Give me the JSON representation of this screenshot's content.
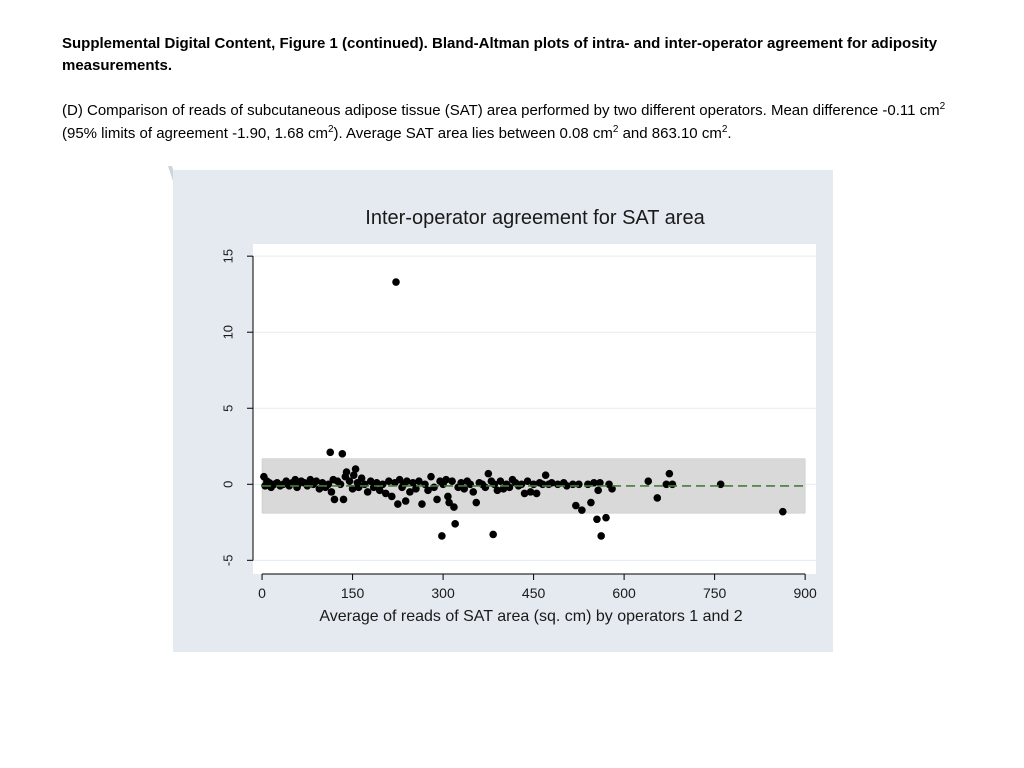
{
  "header": {
    "title": "Supplemental Digital Content, Figure 1 (continued). Bland-Altman plots of intra- and inter-operator agreement for adiposity measurements.",
    "description": {
      "part1": "(D) Comparison of reads of subcutaneous adipose tissue (SAT) area performed by two different operators. Mean difference -0.11 cm",
      "sup1": "2",
      "part2": " (95% limits of agreement -1.90, 1.68 cm",
      "sup2": "2",
      "part3": "). Average SAT area lies between 0.08 cm",
      "sup3": "2",
      "part4": " and 863.10 cm",
      "sup4": "2",
      "part5": "."
    }
  },
  "colors": {
    "panel_bg": "#e5eaf0",
    "plot_bg": "#ffffff",
    "gridline": "#e6eaef",
    "band_fill": "#d9d9d9",
    "mean_line": "#4a7a3a",
    "points": "#000000"
  },
  "chart_data": {
    "type": "scatter",
    "title": "Inter-operator agreement for SAT area",
    "xlabel": "Average of reads of SAT area (sq. cm) by operators 1 and 2",
    "ylabel": "",
    "xlim": [
      -15,
      918
    ],
    "ylim": [
      -5.9,
      15.8
    ],
    "xticks": [
      0,
      150,
      300,
      450,
      600,
      750,
      900
    ],
    "yticks": [
      -5,
      0,
      5,
      10,
      15
    ],
    "grid": true,
    "mean_difference": -0.11,
    "limits_of_agreement": [
      -1.9,
      1.68
    ],
    "points": [
      [
        3,
        0.5
      ],
      [
        5,
        -0.1
      ],
      [
        8,
        0.2
      ],
      [
        12,
        0.1
      ],
      [
        15,
        -0.2
      ],
      [
        20,
        0.0
      ],
      [
        25,
        0.1
      ],
      [
        30,
        -0.1
      ],
      [
        35,
        0.0
      ],
      [
        40,
        0.2
      ],
      [
        45,
        -0.1
      ],
      [
        50,
        0.1
      ],
      [
        55,
        0.3
      ],
      [
        58,
        -0.2
      ],
      [
        60,
        0.0
      ],
      [
        65,
        0.2
      ],
      [
        70,
        0.1
      ],
      [
        75,
        -0.1
      ],
      [
        80,
        0.3
      ],
      [
        85,
        0.0
      ],
      [
        90,
        0.2
      ],
      [
        95,
        -0.3
      ],
      [
        100,
        0.1
      ],
      [
        105,
        -0.2
      ],
      [
        110,
        0.0
      ],
      [
        113,
        2.1
      ],
      [
        115,
        -0.5
      ],
      [
        118,
        0.3
      ],
      [
        120,
        -1.0
      ],
      [
        125,
        0.2
      ],
      [
        130,
        0.0
      ],
      [
        133,
        2.0
      ],
      [
        135,
        -1.0
      ],
      [
        138,
        0.5
      ],
      [
        140,
        0.8
      ],
      [
        145,
        0.2
      ],
      [
        150,
        -0.3
      ],
      [
        152,
        0.6
      ],
      [
        155,
        1.0
      ],
      [
        158,
        0.1
      ],
      [
        160,
        -0.2
      ],
      [
        165,
        0.4
      ],
      [
        170,
        0.0
      ],
      [
        175,
        -0.5
      ],
      [
        180,
        0.2
      ],
      [
        185,
        -0.2
      ],
      [
        190,
        0.1
      ],
      [
        195,
        -0.4
      ],
      [
        200,
        0.0
      ],
      [
        205,
        -0.6
      ],
      [
        210,
        0.2
      ],
      [
        215,
        -0.8
      ],
      [
        220,
        0.1
      ],
      [
        222,
        13.3
      ],
      [
        225,
        -1.3
      ],
      [
        228,
        0.3
      ],
      [
        232,
        -0.2
      ],
      [
        235,
        0.0
      ],
      [
        238,
        -1.1
      ],
      [
        240,
        0.2
      ],
      [
        245,
        -0.5
      ],
      [
        250,
        0.1
      ],
      [
        255,
        -0.3
      ],
      [
        260,
        0.2
      ],
      [
        265,
        -1.3
      ],
      [
        270,
        0.0
      ],
      [
        275,
        -0.4
      ],
      [
        280,
        0.5
      ],
      [
        285,
        -0.2
      ],
      [
        290,
        -1.0
      ],
      [
        295,
        0.2
      ],
      [
        298,
        -3.4
      ],
      [
        300,
        0.0
      ],
      [
        305,
        0.3
      ],
      [
        308,
        -0.8
      ],
      [
        310,
        -1.2
      ],
      [
        315,
        0.2
      ],
      [
        318,
        -1.5
      ],
      [
        320,
        -2.6
      ],
      [
        325,
        -0.2
      ],
      [
        330,
        0.1
      ],
      [
        335,
        -0.3
      ],
      [
        340,
        0.2
      ],
      [
        345,
        0.0
      ],
      [
        350,
        -0.5
      ],
      [
        355,
        -1.2
      ],
      [
        360,
        0.1
      ],
      [
        365,
        0.0
      ],
      [
        370,
        -0.2
      ],
      [
        375,
        0.7
      ],
      [
        380,
        0.2
      ],
      [
        383,
        -3.3
      ],
      [
        385,
        0.0
      ],
      [
        390,
        -0.4
      ],
      [
        395,
        0.2
      ],
      [
        400,
        -0.3
      ],
      [
        405,
        0.0
      ],
      [
        410,
        -0.2
      ],
      [
        415,
        0.3
      ],
      [
        420,
        0.1
      ],
      [
        425,
        -0.1
      ],
      [
        430,
        0.0
      ],
      [
        435,
        -0.6
      ],
      [
        440,
        0.2
      ],
      [
        445,
        -0.5
      ],
      [
        450,
        0.0
      ],
      [
        455,
        -0.6
      ],
      [
        460,
        0.1
      ],
      [
        465,
        0.0
      ],
      [
        470,
        0.6
      ],
      [
        475,
        0.0
      ],
      [
        480,
        0.1
      ],
      [
        490,
        0.0
      ],
      [
        500,
        0.1
      ],
      [
        505,
        -0.1
      ],
      [
        515,
        0.0
      ],
      [
        520,
        -1.4
      ],
      [
        525,
        0.0
      ],
      [
        530,
        -1.7
      ],
      [
        540,
        0.0
      ],
      [
        545,
        -1.2
      ],
      [
        550,
        0.1
      ],
      [
        555,
        -2.3
      ],
      [
        557,
        -0.4
      ],
      [
        560,
        0.1
      ],
      [
        562,
        -3.4
      ],
      [
        570,
        -2.2
      ],
      [
        575,
        0.0
      ],
      [
        580,
        -0.3
      ],
      [
        640,
        0.2
      ],
      [
        655,
        -0.9
      ],
      [
        670,
        0.0
      ],
      [
        675,
        0.7
      ],
      [
        680,
        0.0
      ],
      [
        760,
        0.0
      ],
      [
        863,
        -1.8
      ]
    ]
  }
}
